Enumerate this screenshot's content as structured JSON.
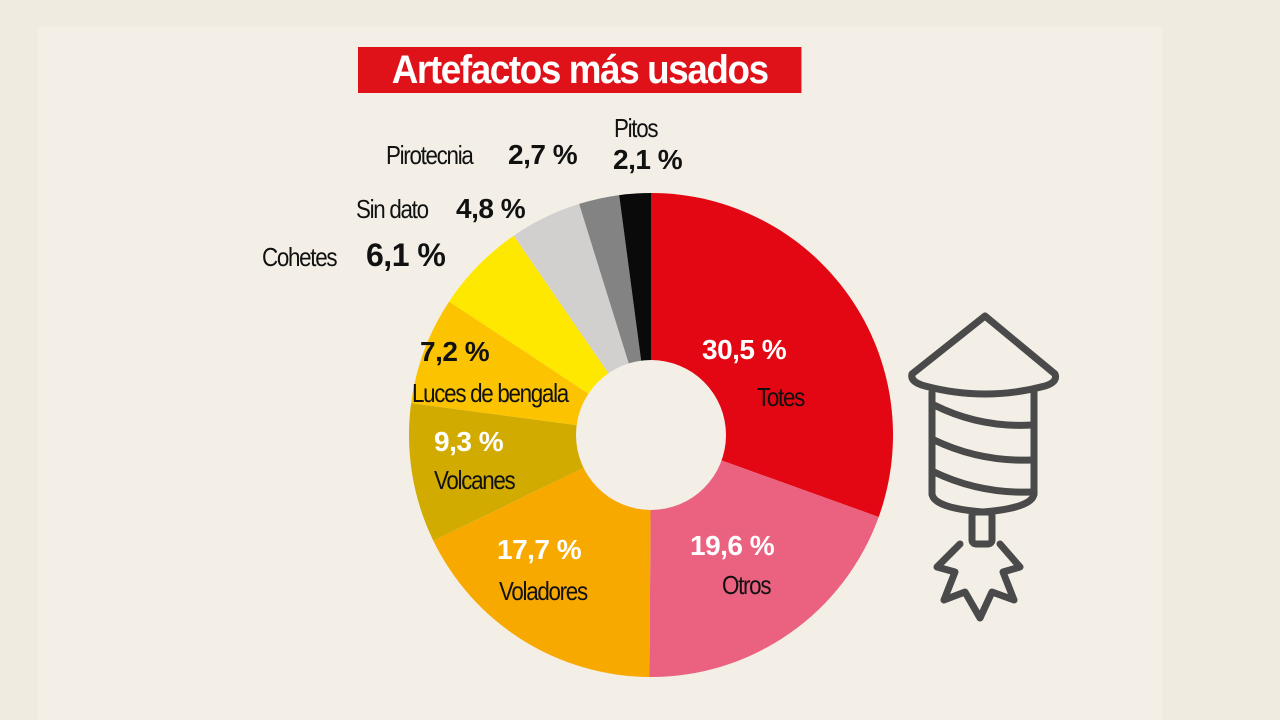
{
  "title": "Artefactos más usados",
  "colors": {
    "background": "#f3efe6",
    "title_bg": "#df1119",
    "title_text": "#ffffff"
  },
  "labels": {
    "totes": {
      "name": "Totes",
      "value": "30,5 %"
    },
    "otros": {
      "name": "Otros",
      "value": "19,6 %"
    },
    "voladores": {
      "name": "Voladores",
      "value": "17,7 %"
    },
    "volcanes": {
      "name": "Volcanes",
      "value": "9,3 %"
    },
    "luces": {
      "name": "Luces de bengala",
      "value": "7,2 %"
    },
    "cohetes": {
      "name": "Cohetes",
      "value": "6,1 %"
    },
    "sindato": {
      "name": "Sin dato",
      "value": "4,8 %"
    },
    "pirotecnia": {
      "name": "Pirotecnia",
      "value": "2,7 %"
    },
    "pitos": {
      "name": "Pitos",
      "value": "2,1 %"
    }
  },
  "icon": "rocket-firework-icon",
  "chart_data": {
    "type": "pie",
    "subtype": "donut",
    "title": "Artefactos más usados",
    "unit": "%",
    "start_angle": "12 o'clock, clockwise",
    "categories": [
      "Totes",
      "Otros",
      "Voladores",
      "Volcanes",
      "Luces de bengala",
      "Cohetes",
      "Sin dato",
      "Pirotecnia",
      "Pitos"
    ],
    "values": [
      30.5,
      19.6,
      17.7,
      9.3,
      7.2,
      6.1,
      4.8,
      2.7,
      2.1
    ],
    "colors": [
      "#e30613",
      "#ea6280",
      "#f8a900",
      "#d2ab00",
      "#fcc400",
      "#ffe800",
      "#d1d0cf",
      "#838383",
      "#0a0a0a"
    ],
    "legend": "none (direct labels)"
  }
}
